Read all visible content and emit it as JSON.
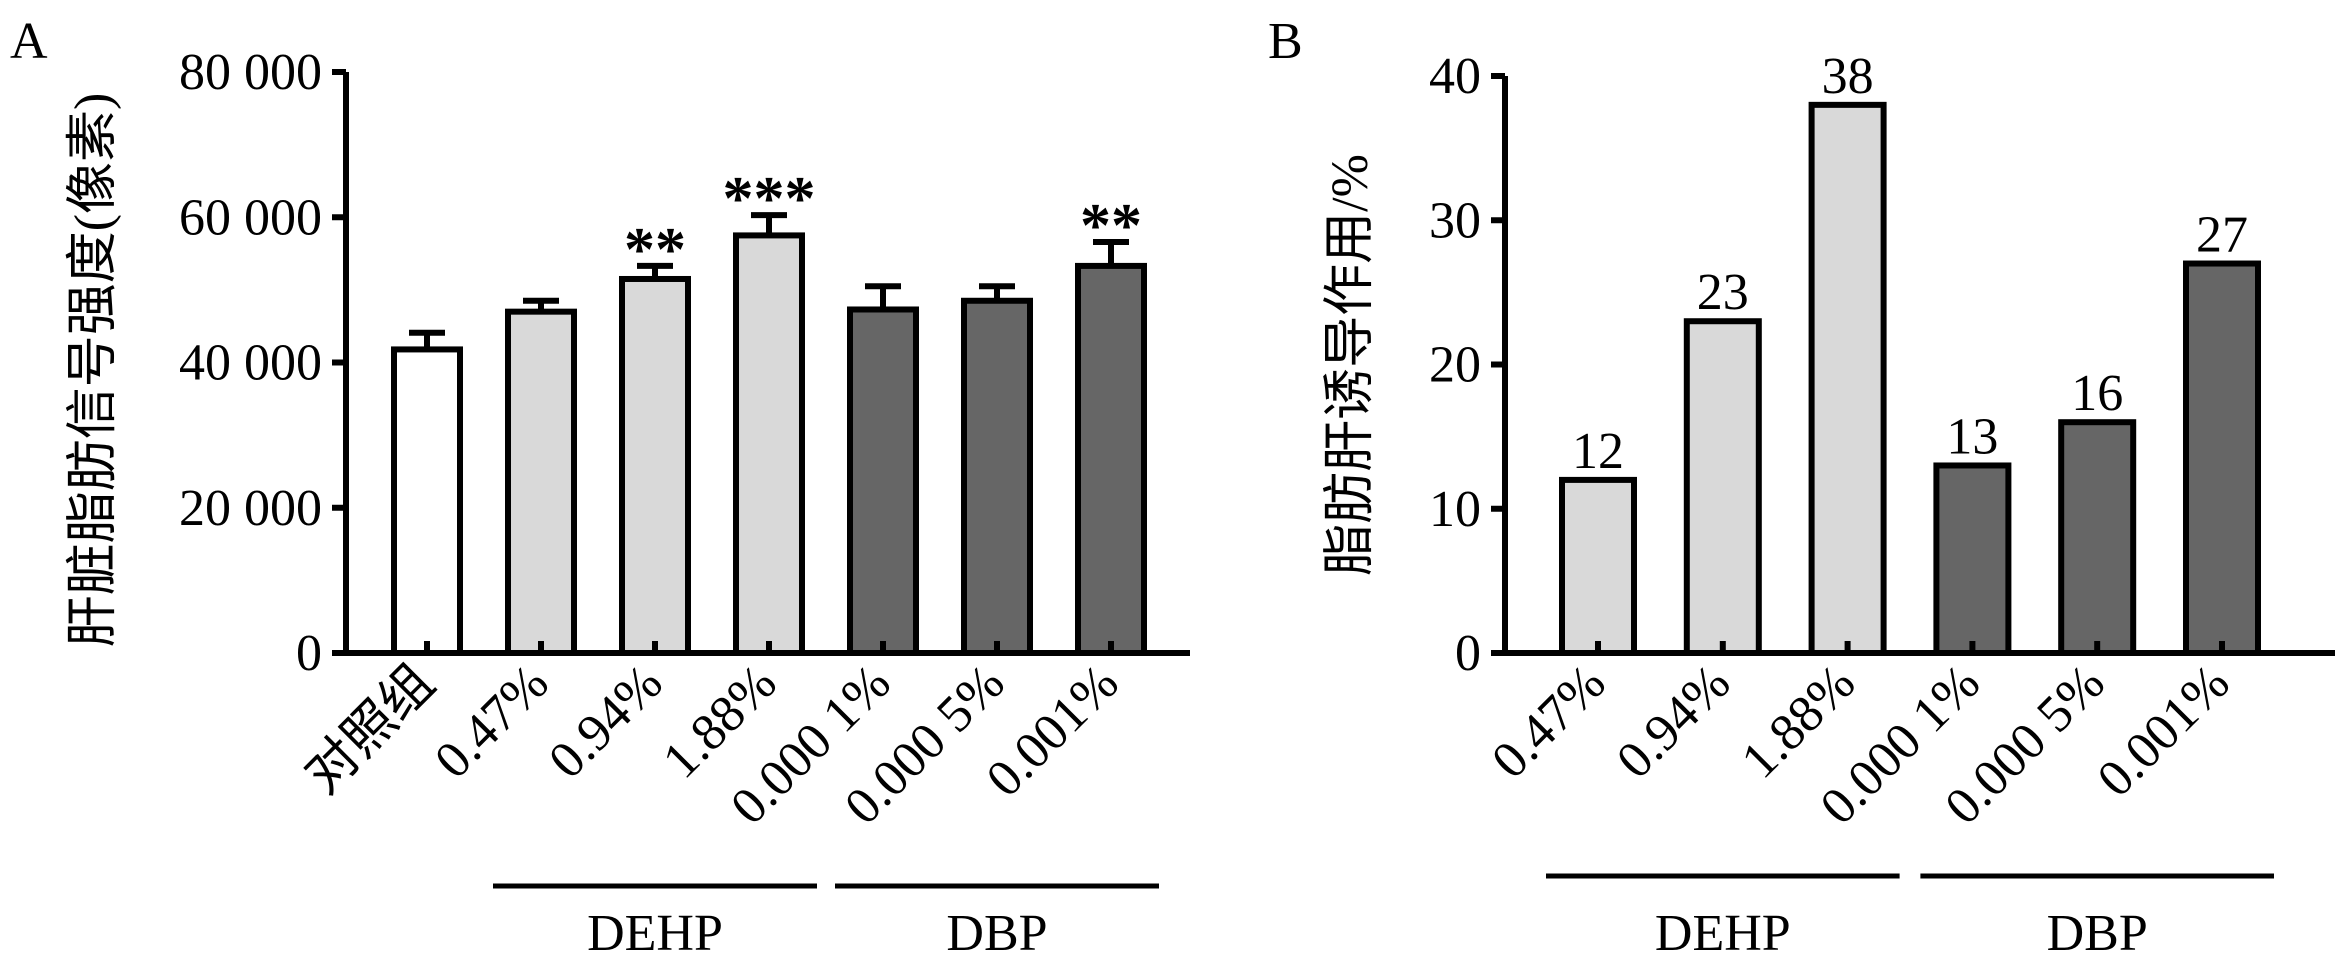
{
  "chart_data": [
    {
      "panel": "A",
      "type": "bar",
      "ylabel": "肝脏脂肪信号强度(像素)",
      "ylim": [
        0,
        80000
      ],
      "yticks": [
        0,
        20000,
        40000,
        60000,
        80000
      ],
      "ytick_labels": [
        "0",
        "20 000",
        "40 000",
        "60 000",
        "80 000"
      ],
      "categories": [
        "对照组",
        "0.47%",
        "0.94%",
        "1.88%",
        "0.000 1%",
        "0.000 5%",
        "0.001%"
      ],
      "values": [
        41800,
        47000,
        51500,
        57500,
        47300,
        48500,
        53300
      ],
      "errors": [
        2300,
        1500,
        1800,
        2800,
        3200,
        2000,
        3300
      ],
      "significance": [
        "",
        "",
        "**",
        "***",
        "",
        "",
        "**"
      ],
      "bar_colors": [
        "#ffffff",
        "#d9d9d9",
        "#d9d9d9",
        "#d9d9d9",
        "#666666",
        "#666666",
        "#666666"
      ],
      "groups": [
        {
          "label": "DEHP",
          "from": 1,
          "to": 3
        },
        {
          "label": "DBP",
          "from": 4,
          "to": 6
        }
      ]
    },
    {
      "panel": "B",
      "type": "bar",
      "ylabel": "脂肪肝诱导作用/%",
      "ylim": [
        0,
        40
      ],
      "yticks": [
        0,
        10,
        20,
        30,
        40
      ],
      "ytick_labels": [
        "0",
        "10",
        "20",
        "30",
        "40"
      ],
      "categories": [
        "0.47%",
        "0.94%",
        "1.88%",
        "0.000 1%",
        "0.000 5%",
        "0.001%"
      ],
      "values": [
        12,
        23,
        38,
        13,
        16,
        27
      ],
      "value_labels": [
        "12",
        "23",
        "38",
        "13",
        "16",
        "27"
      ],
      "bar_colors": [
        "#d9d9d9",
        "#d9d9d9",
        "#d9d9d9",
        "#666666",
        "#666666",
        "#666666"
      ],
      "groups": [
        {
          "label": "DEHP",
          "from": 0,
          "to": 2
        },
        {
          "label": "DBP",
          "from": 3,
          "to": 5
        }
      ]
    }
  ]
}
